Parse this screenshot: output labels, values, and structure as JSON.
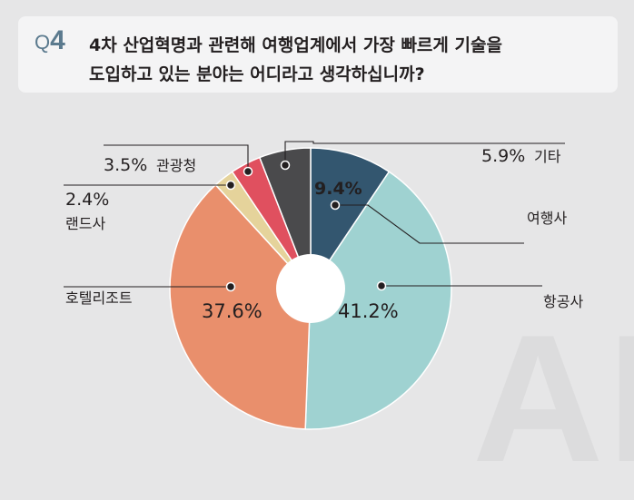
{
  "question": {
    "label_q": "Q",
    "label_num": "4",
    "line1": "4차 산업혁명과 관련해 여행업계에서 가장 빠르게 기술을",
    "line2": "도입하고 있는 분야는 어디라고 생각하십니까?"
  },
  "watermark": "AI",
  "chart_data": {
    "type": "pie",
    "donut": true,
    "title": "",
    "categories": [
      "여행사",
      "항공사",
      "호텔리조트",
      "랜드사",
      "관광청",
      "기타"
    ],
    "values": [
      9.4,
      41.2,
      37.6,
      2.4,
      3.5,
      5.9
    ],
    "value_labels": [
      "9.4%",
      "41.2%",
      "37.6%",
      "2.4%",
      "3.5%",
      "5.9%"
    ],
    "colors": [
      "#33566f",
      "#9fd2d1",
      "#e98f6c",
      "#e5d39b",
      "#e0505f",
      "#4a4a4c"
    ],
    "start": "12 o'clock",
    "direction": "clockwise",
    "legend": "none (callout labels)"
  }
}
